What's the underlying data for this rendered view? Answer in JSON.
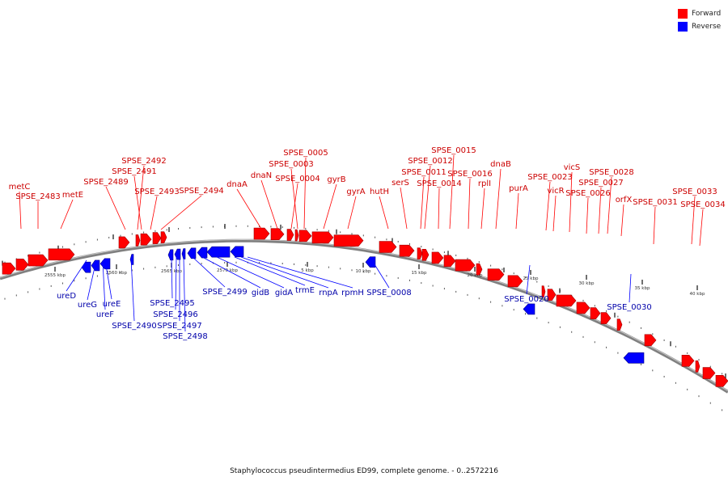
{
  "legend": {
    "items": [
      {
        "label": "Forward",
        "color": "#ff0000"
      },
      {
        "label": "Reverse",
        "color": "#0000ff"
      }
    ]
  },
  "caption": "Staphylococcus pseudintermedius ED99, complete genome. - 0..2572216",
  "colors": {
    "forward": "#ff0000",
    "reverse": "#0000ff",
    "backbone": "#808080",
    "forward_label": "#cc0000",
    "reverse_label": "#0000aa"
  },
  "scale_labels": [
    "2555 kbp",
    "2560 kbp",
    "2565 kbp",
    "2570 kbp",
    "5 kbp",
    "10 kbp",
    "15 kbp",
    "20 kbp",
    "25 kbp",
    "30 kbp",
    "35 kbp",
    "40 kbp"
  ],
  "forward_labels": [
    "metC",
    "SPSE_2483",
    "metE",
    "SPSE_2489",
    "SPSE_2492",
    "SPSE_2491",
    "SPSE_2493",
    "SPSE_2494",
    "dnaA",
    "dnaN",
    "SPSE_0005",
    "SPSE_0003",
    "SPSE_0004",
    "gyrB",
    "gyrA",
    "hutH",
    "serS",
    "SPSE_0015",
    "SPSE_0012",
    "SPSE_0011",
    "SPSE_0014",
    "SPSE_0016",
    "rplI",
    "dnaB",
    "purA",
    "SPSE_0023",
    "vicR",
    "vicS",
    "SPSE_0028",
    "SPSE_0027",
    "SPSE_0026",
    "orfX",
    "SPSE_0031",
    "SPSE_0033",
    "SPSE_0034"
  ],
  "reverse_labels": [
    "ureD",
    "ureG",
    "ureE",
    "ureF",
    "SPSE_2490",
    "SPSE_2495",
    "SPSE_2496",
    "SPSE_2497",
    "SPSE_2498",
    "SPSE_2499",
    "gidB",
    "gidA",
    "trmE",
    "rnpA",
    "rpmH",
    "SPSE_0008",
    "SPSE_0020",
    "SPSE_0030"
  ]
}
